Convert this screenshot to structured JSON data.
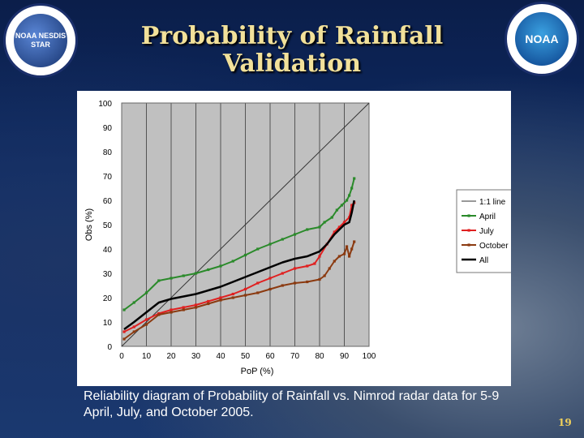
{
  "slide": {
    "title_line1": "Probability of Rainfall",
    "title_line2": "Validation",
    "caption": "Reliability diagram of Probability of Rainfall vs. Nimrod radar data for 5-9 April, July, and October 2005.",
    "page_number": "19",
    "left_logo_text": "NOAA NESDIS STAR",
    "right_logo_text": "NOAA"
  },
  "chart_data": {
    "type": "line",
    "xlabel": "PoP (%)",
    "ylabel": "Obs (%)",
    "xlim": [
      0,
      100
    ],
    "ylim": [
      0,
      100
    ],
    "xticks": [
      0,
      10,
      20,
      30,
      40,
      50,
      60,
      70,
      80,
      90,
      100
    ],
    "yticks": [
      0,
      10,
      20,
      30,
      40,
      50,
      60,
      70,
      80,
      90,
      100
    ],
    "grid": "vertical",
    "legend_position": "right",
    "series": [
      {
        "name": "1:1 line",
        "color": "#333333",
        "marker": false,
        "width": 1,
        "points": [
          [
            0,
            0
          ],
          [
            100,
            100
          ]
        ]
      },
      {
        "name": "April",
        "color": "#2a8a2a",
        "marker": true,
        "width": 2,
        "points": [
          [
            1,
            15
          ],
          [
            5,
            18
          ],
          [
            10,
            22
          ],
          [
            15,
            27
          ],
          [
            20,
            28
          ],
          [
            25,
            29
          ],
          [
            30,
            30
          ],
          [
            35,
            31.5
          ],
          [
            40,
            33
          ],
          [
            45,
            35
          ],
          [
            50,
            37.5
          ],
          [
            55,
            40
          ],
          [
            60,
            42
          ],
          [
            65,
            44
          ],
          [
            70,
            46
          ],
          [
            75,
            48
          ],
          [
            80,
            49
          ],
          [
            82,
            51
          ],
          [
            85,
            53
          ],
          [
            87,
            56
          ],
          [
            89,
            58
          ],
          [
            91,
            60
          ],
          [
            92,
            62
          ],
          [
            93,
            65
          ],
          [
            94,
            69
          ]
        ]
      },
      {
        "name": "July",
        "color": "#e02020",
        "marker": true,
        "width": 2,
        "points": [
          [
            1,
            6
          ],
          [
            5,
            8
          ],
          [
            10,
            11
          ],
          [
            15,
            13.5
          ],
          [
            20,
            15
          ],
          [
            25,
            16
          ],
          [
            30,
            17
          ],
          [
            35,
            18.5
          ],
          [
            40,
            20
          ],
          [
            45,
            21.5
          ],
          [
            50,
            23.5
          ],
          [
            55,
            26
          ],
          [
            60,
            28
          ],
          [
            65,
            30
          ],
          [
            70,
            32
          ],
          [
            75,
            33
          ],
          [
            78,
            34
          ],
          [
            80,
            37
          ],
          [
            83,
            42
          ],
          [
            86,
            47
          ],
          [
            88,
            49
          ],
          [
            90,
            51
          ],
          [
            92,
            53
          ],
          [
            93,
            58
          ],
          [
            94,
            59
          ]
        ]
      },
      {
        "name": "October",
        "color": "#8b3a10",
        "marker": true,
        "width": 2,
        "points": [
          [
            1,
            3
          ],
          [
            5,
            6
          ],
          [
            10,
            9
          ],
          [
            15,
            13
          ],
          [
            20,
            14
          ],
          [
            25,
            15
          ],
          [
            30,
            16
          ],
          [
            35,
            17.5
          ],
          [
            40,
            19
          ],
          [
            45,
            20
          ],
          [
            50,
            21
          ],
          [
            55,
            22
          ],
          [
            60,
            23.5
          ],
          [
            65,
            25
          ],
          [
            70,
            26
          ],
          [
            75,
            26.5
          ],
          [
            80,
            27.5
          ],
          [
            82,
            29
          ],
          [
            84,
            32
          ],
          [
            86,
            35
          ],
          [
            88,
            37
          ],
          [
            90,
            38
          ],
          [
            91,
            41
          ],
          [
            92,
            37
          ],
          [
            93,
            40
          ],
          [
            94,
            43
          ]
        ]
      },
      {
        "name": "All",
        "color": "#000000",
        "marker": false,
        "width": 2.5,
        "points": [
          [
            1,
            7
          ],
          [
            5,
            10
          ],
          [
            10,
            14
          ],
          [
            15,
            18
          ],
          [
            20,
            19.5
          ],
          [
            25,
            20.5
          ],
          [
            30,
            21.5
          ],
          [
            35,
            23
          ],
          [
            40,
            24.5
          ],
          [
            45,
            26.5
          ],
          [
            50,
            28.5
          ],
          [
            55,
            30.5
          ],
          [
            60,
            32.5
          ],
          [
            65,
            34.5
          ],
          [
            70,
            36
          ],
          [
            75,
            37
          ],
          [
            80,
            39
          ],
          [
            83,
            42
          ],
          [
            86,
            46
          ],
          [
            88,
            48
          ],
          [
            90,
            50
          ],
          [
            92,
            51
          ],
          [
            93,
            55
          ],
          [
            94,
            60
          ]
        ]
      }
    ]
  }
}
